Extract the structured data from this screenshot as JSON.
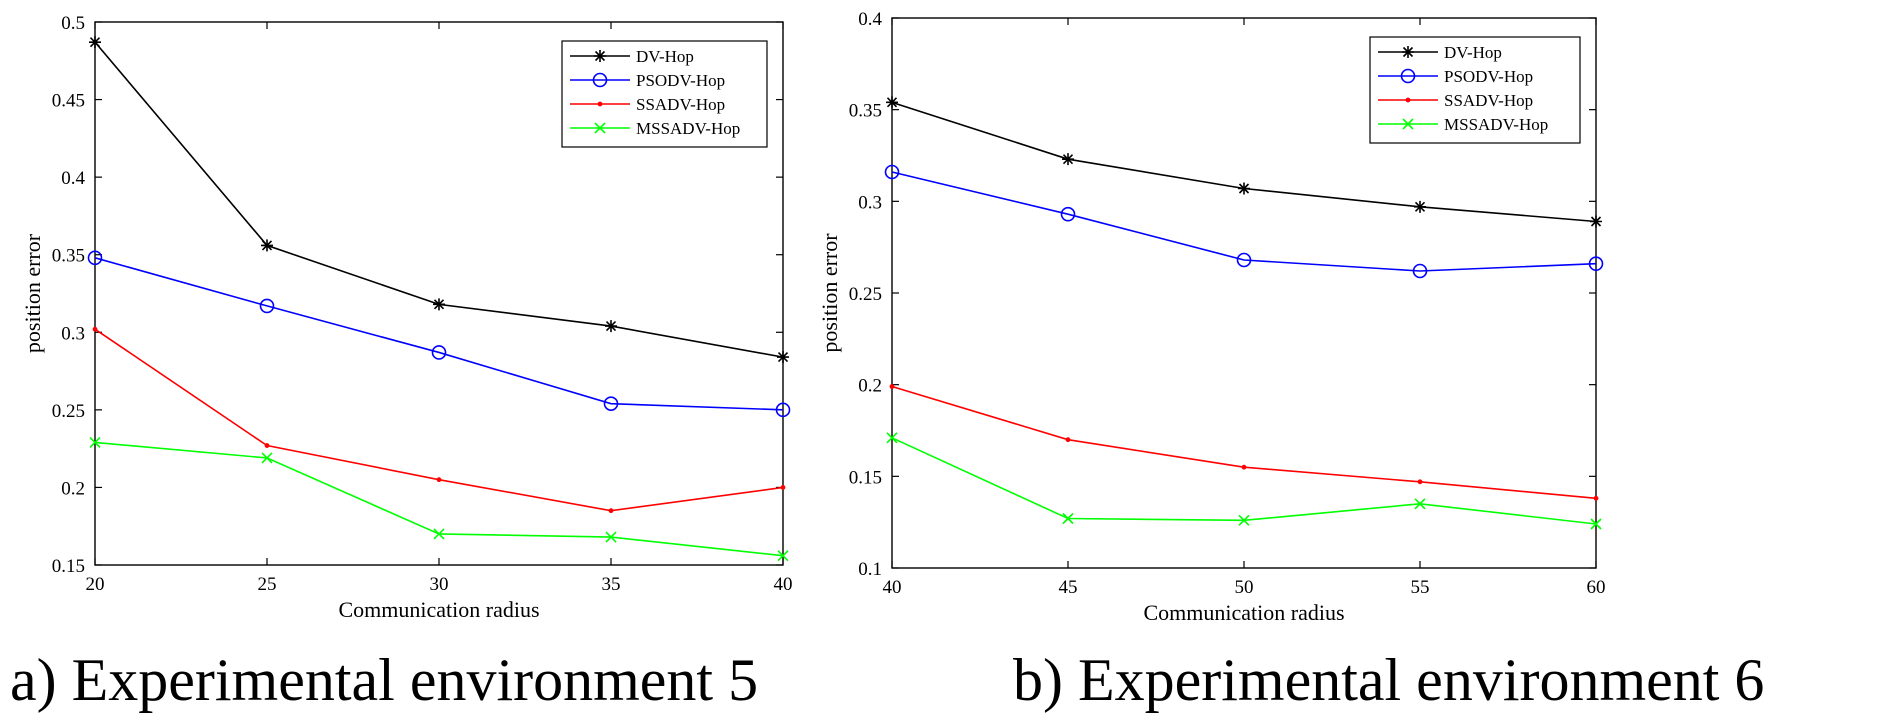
{
  "chart_data": [
    {
      "type": "line",
      "caption": "a) Experimental environment 5",
      "xlabel": "Communication radius",
      "ylabel": "position error",
      "x": [
        20,
        25,
        30,
        35,
        40
      ],
      "xlim": [
        20,
        40
      ],
      "ylim": [
        0.15,
        0.5
      ],
      "xticks": [
        "20",
        "25",
        "30",
        "35",
        "40"
      ],
      "yticks": [
        "0.15",
        "0.2",
        "0.25",
        "0.3",
        "0.35",
        "0.4",
        "0.45",
        "0.5"
      ],
      "legend_position": "top-right",
      "grid": false,
      "series": [
        {
          "name": "DV-Hop",
          "color": "#000000",
          "marker": "star",
          "values": [
            0.487,
            0.356,
            0.318,
            0.304,
            0.284
          ]
        },
        {
          "name": "PSODV-Hop",
          "color": "#0000ff",
          "marker": "circle",
          "values": [
            0.348,
            0.317,
            0.287,
            0.254,
            0.25
          ]
        },
        {
          "name": "SSADV-Hop",
          "color": "#ff0000",
          "marker": "dot",
          "values": [
            0.302,
            0.227,
            0.205,
            0.185,
            0.2
          ]
        },
        {
          "name": "MSSADV-Hop",
          "color": "#00ff00",
          "marker": "x",
          "values": [
            0.229,
            0.219,
            0.17,
            0.168,
            0.156
          ]
        }
      ]
    },
    {
      "type": "line",
      "caption": "b) Experimental environment 6",
      "xlabel": "Communication radius",
      "ylabel": "position error",
      "x": [
        40,
        45,
        50,
        55,
        60
      ],
      "xlim": [
        40,
        60
      ],
      "ylim": [
        0.1,
        0.4
      ],
      "xticks": [
        "40",
        "45",
        "50",
        "55",
        "60"
      ],
      "yticks": [
        "0.1",
        "0.15",
        "0.2",
        "0.25",
        "0.3",
        "0.35",
        "0.4"
      ],
      "legend_position": "top-right",
      "grid": false,
      "series": [
        {
          "name": "DV-Hop",
          "color": "#000000",
          "marker": "star",
          "values": [
            0.354,
            0.323,
            0.307,
            0.297,
            0.289
          ]
        },
        {
          "name": "PSODV-Hop",
          "color": "#0000ff",
          "marker": "circle",
          "values": [
            0.316,
            0.293,
            0.268,
            0.262,
            0.266
          ]
        },
        {
          "name": "SSADV-Hop",
          "color": "#ff0000",
          "marker": "dot",
          "values": [
            0.199,
            0.17,
            0.155,
            0.147,
            0.138
          ]
        },
        {
          "name": "MSSADV-Hop",
          "color": "#00ff00",
          "marker": "x",
          "values": [
            0.171,
            0.127,
            0.126,
            0.135,
            0.124
          ]
        }
      ]
    }
  ]
}
